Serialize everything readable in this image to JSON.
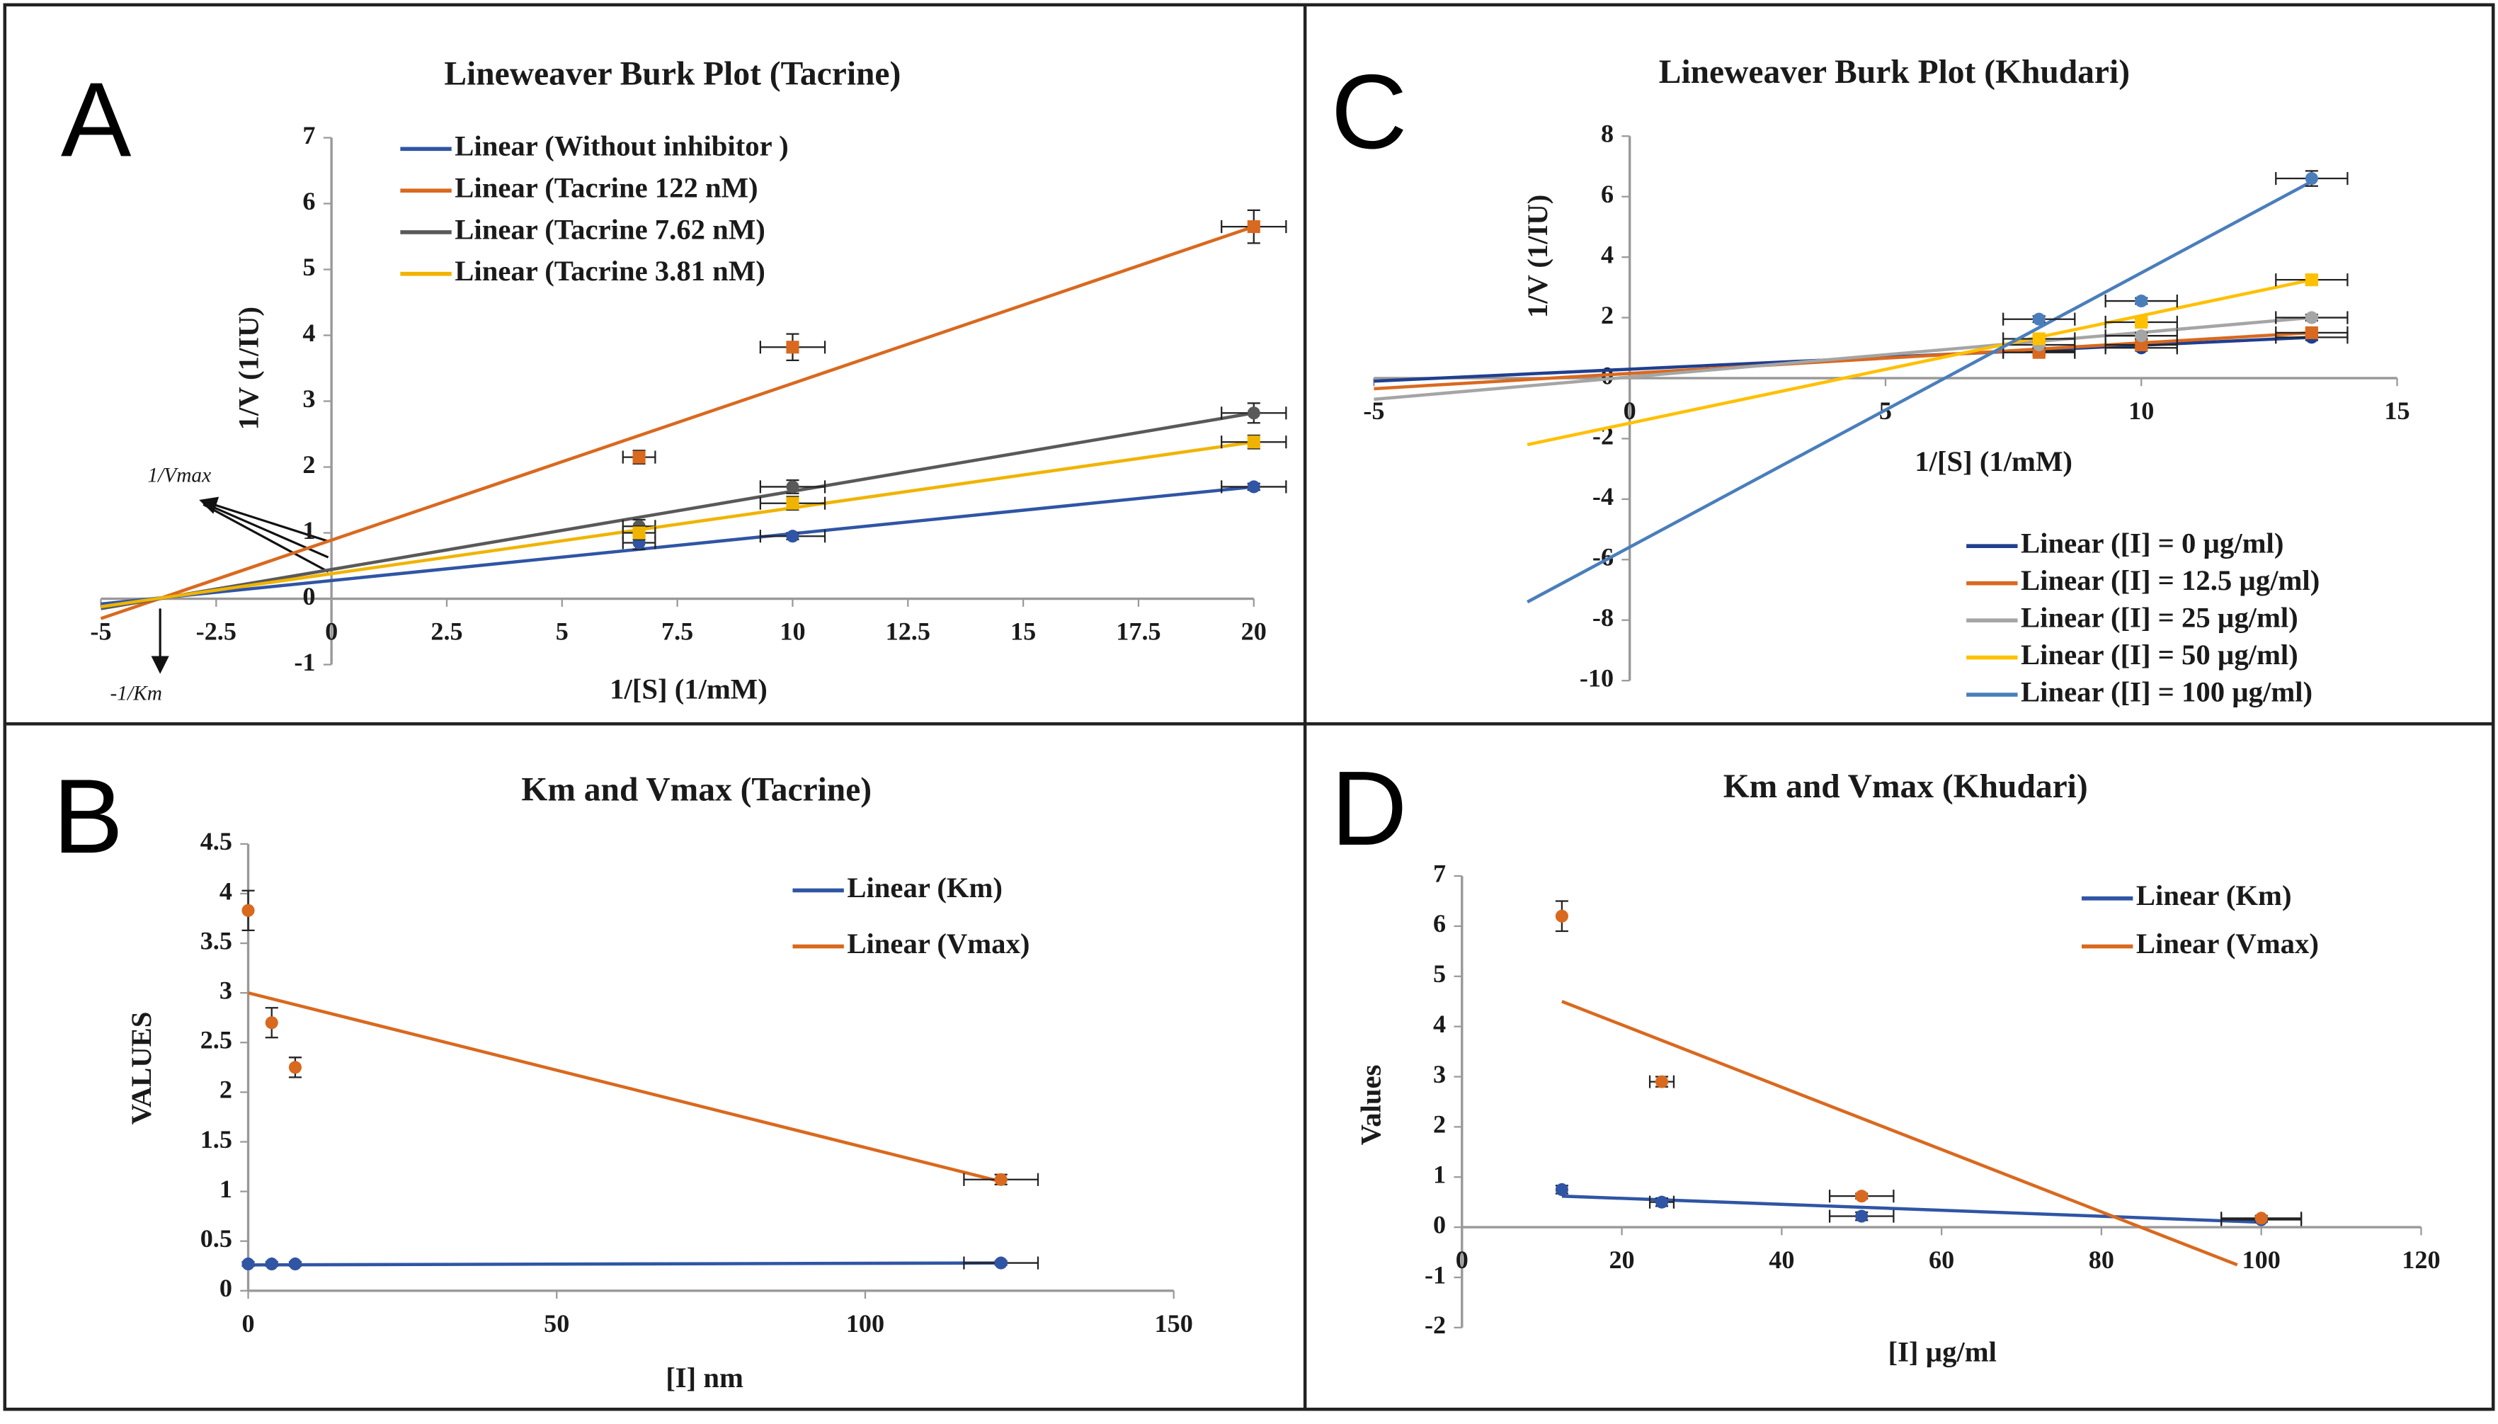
{
  "chart_data": [
    {
      "type": "scatter",
      "panel": "A",
      "title": "Lineweaver Burk Plot (Tacrine)",
      "x_label": "1/[S] (1/mM)",
      "y_label": "1/V (1/IU)",
      "xlim": [
        -5,
        20
      ],
      "xticks": [
        -5,
        -2.5,
        0,
        2.5,
        5,
        7.5,
        10,
        12.5,
        15,
        17.5,
        20
      ],
      "ylim": [
        -1,
        7
      ],
      "yticks": [
        -1,
        0,
        1,
        2,
        3,
        4,
        5,
        6,
        7
      ],
      "annotations": [
        "1/Vmax",
        "-1/Km"
      ],
      "series": [
        {
          "name": "Linear (Without inhibitor )",
          "color": "#2f55a4",
          "marker": "circle",
          "x": [
            6.67,
            10,
            20
          ],
          "values": [
            0.85,
            0.95,
            1.7
          ],
          "xerr": [
            0.35,
            0.7,
            0.7
          ],
          "yerr": [
            0.1,
            0.05,
            0.05
          ],
          "fit": {
            "x": [
              -5,
              20
            ],
            "values": [
              -0.08,
              1.7
            ]
          }
        },
        {
          "name": "Linear (Tacrine 122 nM)",
          "color": "#d9691f",
          "marker": "square",
          "x": [
            6.67,
            10,
            20
          ],
          "values": [
            2.15,
            3.82,
            5.65
          ],
          "xerr": [
            0.35,
            0.7,
            0.7
          ],
          "yerr": [
            0.1,
            0.2,
            0.25
          ],
          "fit": {
            "x": [
              -5,
              20
            ],
            "values": [
              -0.3,
              5.65
            ]
          }
        },
        {
          "name": "Linear (Tacrine 7.62 nM)",
          "color": "#595959",
          "marker": "circle",
          "x": [
            6.67,
            10,
            20
          ],
          "values": [
            1.1,
            1.7,
            2.82
          ],
          "xerr": [
            0.35,
            0.7,
            0.7
          ],
          "yerr": [
            0.1,
            0.1,
            0.15
          ],
          "fit": {
            "x": [
              -5,
              20
            ],
            "values": [
              -0.15,
              2.82
            ]
          }
        },
        {
          "name": "Linear (Tacrine 3.81 nM)",
          "color": "#f0b400",
          "marker": "square",
          "x": [
            6.67,
            10,
            20
          ],
          "values": [
            1.0,
            1.45,
            2.38
          ],
          "xerr": [
            0.35,
            0.7,
            0.7
          ],
          "yerr": [
            0.1,
            0.1,
            0.1
          ],
          "fit": {
            "x": [
              -5,
              20
            ],
            "values": [
              -0.12,
              2.38
            ]
          }
        }
      ]
    },
    {
      "type": "scatter",
      "panel": "B",
      "title": "Km and Vmax (Tacrine)",
      "x_label": "[I] nm",
      "y_label": "VALUES",
      "xlim": [
        0,
        150
      ],
      "xticks": [
        0,
        50,
        100,
        150
      ],
      "ylim": [
        0,
        4.5
      ],
      "yticks": [
        0,
        0.5,
        1,
        1.5,
        2,
        2.5,
        3,
        3.5,
        4,
        4.5
      ],
      "series": [
        {
          "name": "Linear (Km)",
          "color": "#2f55a4",
          "marker": "circle",
          "x": [
            0,
            3.81,
            7.62,
            122
          ],
          "values": [
            0.27,
            0.27,
            0.27,
            0.28
          ],
          "xerr": [
            0,
            0,
            0,
            6
          ],
          "yerr": [
            0.02,
            0.02,
            0.02,
            0.02
          ],
          "fit": {
            "x": [
              0,
              122
            ],
            "values": [
              0.26,
              0.28
            ]
          }
        },
        {
          "name": "Linear (Vmax)",
          "color": "#d9691f",
          "marker": "circle",
          "x": [
            0,
            3.81,
            7.62,
            122
          ],
          "values": [
            3.83,
            2.7,
            2.25,
            1.12
          ],
          "xerr": [
            0,
            0,
            0,
            6
          ],
          "yerr": [
            0.2,
            0.15,
            0.1,
            0.05
          ],
          "fit": {
            "x": [
              0,
              122
            ],
            "values": [
              3.0,
              1.1
            ]
          }
        }
      ]
    },
    {
      "type": "scatter",
      "panel": "C",
      "title": "Lineweaver Burk Plot (Khudari)",
      "x_label": "1/[S] (1/mM)",
      "y_label": "1/V (1/IU)",
      "xlim": [
        -5,
        15
      ],
      "xticks": [
        -5,
        0,
        5,
        10,
        15
      ],
      "ylim": [
        -10,
        8
      ],
      "yticks": [
        -10,
        -8,
        -6,
        -4,
        -2,
        0,
        2,
        4,
        6,
        8
      ],
      "series": [
        {
          "name": "Linear ([I] = 0 µg/ml)",
          "color": "#203f8f",
          "marker": "circle",
          "x": [
            8,
            10,
            13.33
          ],
          "values": [
            0.9,
            1.0,
            1.35
          ],
          "xerr": [
            0.7,
            0.7,
            0.7
          ],
          "yerr": [
            0.1,
            0.1,
            0.1
          ],
          "fit": {
            "x": [
              -5,
              13.33
            ],
            "values": [
              -0.1,
              1.35
            ]
          }
        },
        {
          "name": "Linear ([I] = 12.5 µg/ml)",
          "color": "#d9691f",
          "marker": "square",
          "x": [
            8,
            10,
            13.33
          ],
          "values": [
            0.85,
            1.1,
            1.5
          ],
          "xerr": [
            0.7,
            0.7,
            0.7
          ],
          "yerr": [
            0.1,
            0.1,
            0.1
          ],
          "fit": {
            "x": [
              -5,
              13.33
            ],
            "values": [
              -0.35,
              1.5
            ]
          }
        },
        {
          "name": "Linear ([I] = 25 µg/ml)",
          "color": "#a5a5a5",
          "marker": "circle",
          "x": [
            8,
            10,
            13.33
          ],
          "values": [
            1.1,
            1.4,
            2.0
          ],
          "xerr": [
            0.7,
            0.7,
            0.7
          ],
          "yerr": [
            0.1,
            0.1,
            0.1
          ],
          "fit": {
            "x": [
              -5,
              13.33
            ],
            "values": [
              -0.7,
              2.0
            ]
          }
        },
        {
          "name": "Linear ([I] = 50 µg/ml)",
          "color": "#ffc000",
          "marker": "square",
          "x": [
            8,
            10,
            13.33
          ],
          "values": [
            1.3,
            1.85,
            3.25
          ],
          "xerr": [
            0.7,
            0.7,
            0.7
          ],
          "yerr": [
            0.1,
            0.1,
            0.15
          ],
          "fit": {
            "x": [
              -2,
              13.33
            ],
            "values": [
              -2.2,
              3.25
            ]
          }
        },
        {
          "name": "Linear ([I] = 100 µg/ml)",
          "color": "#4a7ebb",
          "marker": "circle",
          "x": [
            8,
            10,
            13.33
          ],
          "values": [
            1.95,
            2.55,
            6.6
          ],
          "xerr": [
            0.7,
            0.7,
            0.7
          ],
          "yerr": [
            0.1,
            0.1,
            0.25
          ],
          "fit": {
            "x": [
              -2,
              13.33
            ],
            "values": [
              -7.4,
              6.5
            ]
          }
        }
      ]
    },
    {
      "type": "scatter",
      "panel": "D",
      "title": "Km and Vmax (Khudari)",
      "x_label": "[I] µg/ml",
      "y_label": "Values",
      "xlim": [
        0,
        120
      ],
      "xticks": [
        0,
        20,
        40,
        60,
        80,
        100,
        120
      ],
      "ylim": [
        -2,
        7
      ],
      "yticks": [
        -2,
        -1,
        0,
        1,
        2,
        3,
        4,
        5,
        6,
        7
      ],
      "series": [
        {
          "name": "Linear (Km)",
          "color": "#2f55a4",
          "marker": "circle",
          "x": [
            12.5,
            25,
            50,
            100
          ],
          "values": [
            0.75,
            0.5,
            0.22,
            0.15
          ],
          "xerr": [
            0,
            1.5,
            4,
            5
          ],
          "yerr": [
            0.08,
            0.08,
            0.08,
            0.05
          ],
          "fit": {
            "x": [
              12.5,
              100
            ],
            "values": [
              0.62,
              0.1
            ]
          }
        },
        {
          "name": "Linear (Vmax)",
          "color": "#d9691f",
          "marker": "circle",
          "x": [
            12.5,
            25,
            50,
            100
          ],
          "values": [
            6.2,
            2.9,
            0.62,
            0.18
          ],
          "xerr": [
            0,
            1.5,
            4,
            5
          ],
          "yerr": [
            0.3,
            0.1,
            0.05,
            0.05
          ],
          "fit": {
            "x": [
              12.5,
              97
            ],
            "values": [
              4.5,
              -0.75
            ]
          }
        }
      ]
    }
  ]
}
